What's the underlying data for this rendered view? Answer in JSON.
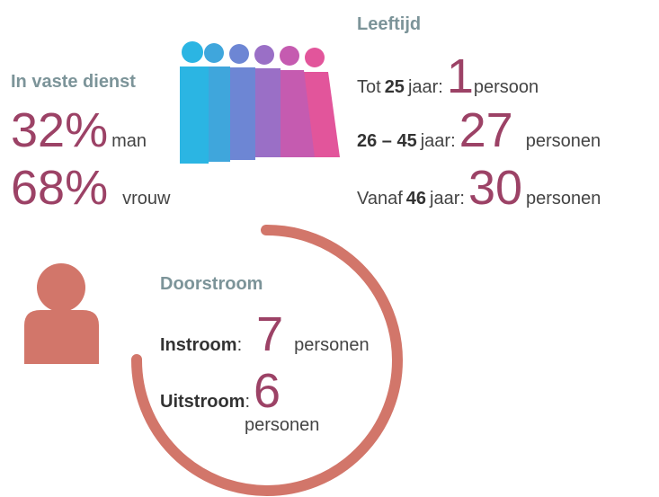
{
  "left": {
    "heading": "In vaste dienst",
    "rows": [
      {
        "value": "32%",
        "label": "man"
      },
      {
        "value": "68%",
        "label": "vrouw"
      }
    ]
  },
  "age": {
    "heading": "Leeftijd",
    "rows": [
      {
        "pre": "Tot",
        "range": "25",
        "unit": "jaar:",
        "value": "1",
        "label": "persoon"
      },
      {
        "range": "26 – 45",
        "unit": "jaar:",
        "value": "27",
        "label": "personen"
      },
      {
        "pre": "Vanaf",
        "range": "46",
        "unit": "jaar:",
        "value": "30",
        "label": "personen"
      }
    ]
  },
  "flow": {
    "heading": "Doorstroom",
    "rows": [
      {
        "label": "Instroom",
        "sep": ":",
        "value": "7",
        "unit": "personen"
      },
      {
        "label": "Uitstroom",
        "sep": ":",
        "value": "6",
        "unit": "personen"
      }
    ]
  }
}
